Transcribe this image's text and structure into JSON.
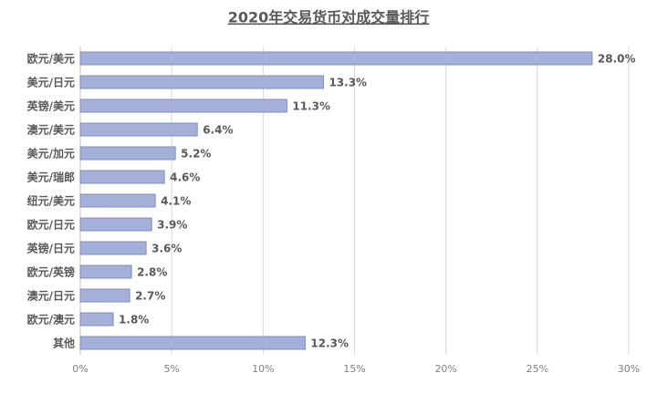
{
  "chart_data": {
    "type": "bar",
    "orientation": "horizontal",
    "title": "2020年交易货币对成交量排行",
    "categories": [
      "欧元/美元",
      "美元/日元",
      "英镑/美元",
      "澳元/美元",
      "美元/加元",
      "美元/瑞郎",
      "纽元/美元",
      "欧元/日元",
      "英镑/日元",
      "欧元/英镑",
      "澳元/日元",
      "欧元/澳元",
      "其他"
    ],
    "values": [
      28.0,
      13.3,
      11.3,
      6.4,
      5.2,
      4.6,
      4.1,
      3.9,
      3.6,
      2.8,
      2.7,
      1.8,
      12.3
    ],
    "value_labels": [
      "28.0%",
      "13.3%",
      "11.3%",
      "6.4%",
      "5.2%",
      "4.6%",
      "4.1%",
      "3.9%",
      "3.6%",
      "2.8%",
      "2.7%",
      "1.8%",
      "12.3%"
    ],
    "color": "#a4b0d8",
    "xlim": [
      0,
      30
    ],
    "xticks": [
      {
        "value": 0,
        "label": "0%"
      },
      {
        "value": 5,
        "label": "5%"
      },
      {
        "value": 10,
        "label": "10%"
      },
      {
        "value": 15,
        "label": "15%"
      },
      {
        "value": 20,
        "label": "20%"
      },
      {
        "value": 25,
        "label": "25%"
      },
      {
        "value": 30,
        "label": "30%"
      }
    ],
    "grid": true
  }
}
